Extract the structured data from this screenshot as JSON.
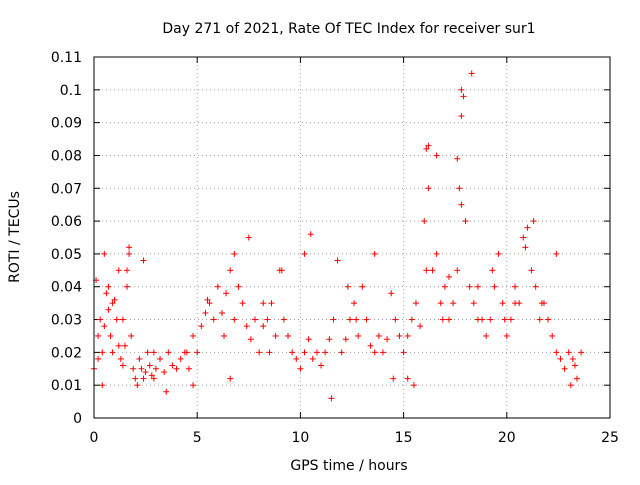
{
  "chart_data": {
    "type": "scatter",
    "title": "Day 271 of 2021, Rate Of TEC Index for receiver sur1",
    "xlabel": "GPS time / hours",
    "ylabel": "ROTI / TECUs",
    "xlim": [
      0,
      25
    ],
    "ylim": [
      0,
      0.11
    ],
    "xticks": [
      0,
      5,
      10,
      15,
      20,
      25
    ],
    "xtick_labels": [
      "0",
      "5",
      "10",
      "15",
      "20",
      "25"
    ],
    "yticks": [
      0,
      0.01,
      0.02,
      0.03,
      0.04,
      0.05,
      0.06,
      0.07,
      0.08,
      0.09,
      0.1,
      0.11
    ],
    "ytick_labels": [
      "0",
      "0.01",
      "0.02",
      "0.03",
      "0.04",
      "0.05",
      "0.06",
      "0.07",
      "0.08",
      "0.09",
      "0.1",
      "0.11"
    ],
    "grid": true,
    "marker": "+",
    "marker_color": "#ff0000",
    "series": [
      {
        "x": [
          0.0,
          0.1,
          0.2,
          0.3,
          0.4,
          0.5,
          0.6,
          0.7,
          0.8,
          0.9,
          1.0,
          1.1,
          1.2,
          1.3,
          1.4,
          1.5,
          1.6,
          1.7,
          1.8,
          1.9,
          2.0,
          2.1,
          2.2,
          2.3,
          2.4,
          2.5,
          2.6,
          2.7,
          2.8,
          2.9,
          3.0,
          3.2,
          3.4,
          3.6,
          3.8,
          4.0,
          4.2,
          4.4,
          4.6,
          4.8,
          5.0,
          5.2,
          5.4,
          5.6,
          5.8,
          6.0,
          6.2,
          6.4,
          6.6,
          6.8,
          7.0,
          7.2,
          7.4,
          7.6,
          7.8,
          8.0,
          8.2,
          8.4,
          8.6,
          8.8,
          9.0,
          9.2,
          9.4,
          9.6,
          9.8,
          10.0,
          10.2,
          10.4,
          10.6,
          10.8,
          11.0,
          11.2,
          11.4,
          11.6,
          11.8,
          12.0,
          12.2,
          12.4,
          12.6,
          12.8,
          13.0,
          13.2,
          13.4,
          13.6,
          13.8,
          14.0,
          14.2,
          14.4,
          14.6,
          14.8,
          15.0,
          15.2,
          15.4,
          15.6,
          15.8,
          16.0,
          16.1,
          16.2,
          16.4,
          16.6,
          16.8,
          17.0,
          17.2,
          17.4,
          17.6,
          17.7,
          17.8,
          18.0,
          18.2,
          18.4,
          18.6,
          18.8,
          19.0,
          19.2,
          19.4,
          19.6,
          19.8,
          20.0,
          20.2,
          20.4,
          20.6,
          20.8,
          21.0,
          21.2,
          21.4,
          21.6,
          21.8,
          22.0,
          22.2,
          22.4,
          22.6,
          22.8,
          23.0,
          23.2,
          23.4,
          23.6,
          0.2,
          0.5,
          0.7,
          0.9,
          1.2,
          1.6,
          1.7,
          2.4,
          3.5,
          4.5,
          5.5,
          6.3,
          6.8,
          7.5,
          8.5,
          9.1,
          10.5,
          11.5,
          12.3,
          13.6,
          14.5,
          15.5,
          16.1,
          16.2,
          16.6,
          17.2,
          17.6,
          17.8,
          17.8,
          17.9,
          18.3,
          19.3,
          20.4,
          20.9,
          21.3,
          22.4,
          23.3,
          0.4,
          1.4,
          2.9,
          4.8,
          6.6,
          8.2,
          10.2,
          12.7,
          15.2,
          16.9,
          18.6,
          19.9,
          21.7,
          23.1
        ],
        "y": [
          0.015,
          0.042,
          0.025,
          0.03,
          0.02,
          0.028,
          0.038,
          0.033,
          0.025,
          0.02,
          0.036,
          0.03,
          0.022,
          0.018,
          0.016,
          0.022,
          0.045,
          0.052,
          0.025,
          0.015,
          0.012,
          0.01,
          0.018,
          0.015,
          0.012,
          0.014,
          0.02,
          0.016,
          0.013,
          0.012,
          0.015,
          0.018,
          0.014,
          0.02,
          0.016,
          0.015,
          0.018,
          0.02,
          0.015,
          0.025,
          0.02,
          0.028,
          0.032,
          0.035,
          0.03,
          0.04,
          0.032,
          0.038,
          0.045,
          0.03,
          0.04,
          0.035,
          0.028,
          0.024,
          0.03,
          0.02,
          0.028,
          0.03,
          0.035,
          0.025,
          0.045,
          0.03,
          0.025,
          0.02,
          0.018,
          0.015,
          0.02,
          0.024,
          0.018,
          0.02,
          0.016,
          0.02,
          0.024,
          0.03,
          0.048,
          0.02,
          0.024,
          0.03,
          0.035,
          0.025,
          0.04,
          0.03,
          0.022,
          0.02,
          0.025,
          0.02,
          0.024,
          0.038,
          0.03,
          0.025,
          0.02,
          0.025,
          0.03,
          0.035,
          0.028,
          0.06,
          0.082,
          0.07,
          0.045,
          0.05,
          0.035,
          0.04,
          0.03,
          0.035,
          0.045,
          0.07,
          0.1,
          0.06,
          0.04,
          0.035,
          0.03,
          0.03,
          0.025,
          0.03,
          0.04,
          0.05,
          0.035,
          0.025,
          0.03,
          0.04,
          0.035,
          0.055,
          0.058,
          0.045,
          0.04,
          0.03,
          0.035,
          0.03,
          0.025,
          0.02,
          0.018,
          0.015,
          0.02,
          0.018,
          0.012,
          0.02,
          0.018,
          0.05,
          0.04,
          0.035,
          0.045,
          0.04,
          0.05,
          0.048,
          0.008,
          0.02,
          0.036,
          0.025,
          0.05,
          0.055,
          0.02,
          0.045,
          0.056,
          0.006,
          0.04,
          0.05,
          0.012,
          0.01,
          0.045,
          0.083,
          0.08,
          0.043,
          0.079,
          0.065,
          0.092,
          0.098,
          0.105,
          0.045,
          0.035,
          0.052,
          0.06,
          0.05,
          0.016,
          0.01,
          0.03,
          0.02,
          0.01,
          0.012,
          0.035,
          0.05,
          0.03,
          0.012,
          0.03,
          0.04,
          0.03,
          0.035,
          0.01
        ]
      }
    ]
  }
}
